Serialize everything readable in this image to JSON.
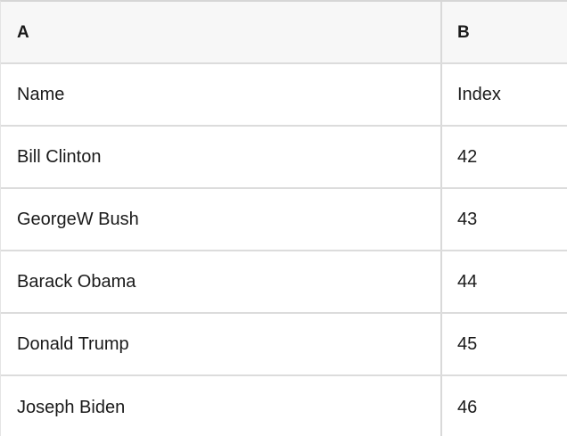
{
  "table": {
    "column_headers": {
      "a": "A",
      "b": "B"
    },
    "rows": [
      {
        "a": "Name",
        "b": "Index"
      },
      {
        "a": "Bill Clinton",
        "b": "42"
      },
      {
        "a": "GeorgeW Bush",
        "b": "43"
      },
      {
        "a": "Barack Obama",
        "b": "44"
      },
      {
        "a": "Donald Trump",
        "b": "45"
      },
      {
        "a": "Joseph Biden",
        "b": "46"
      }
    ]
  },
  "colors": {
    "header_background": "#f7f7f7",
    "row_background": "#ffffff",
    "grid_line": "#dcdcdc",
    "top_border": "#d6d6d6",
    "text": "#1a1a1a"
  }
}
